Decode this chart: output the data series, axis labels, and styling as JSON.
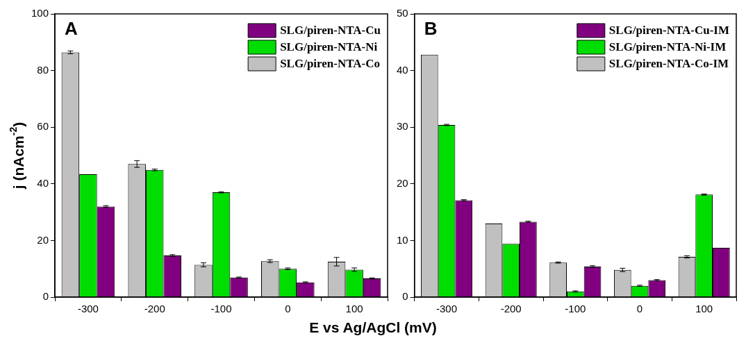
{
  "chart_data": [
    {
      "type": "bar",
      "ylabel": "j (nAcm$^{-2}$)",
      "xlabel": "E vs Ag/AgCl (mV)",
      "annotations": [
        "A"
      ],
      "categories": [
        "-300",
        "-200",
        "-100",
        "0",
        "100"
      ],
      "ylim": [
        0,
        100
      ],
      "yticks": [
        0,
        20,
        40,
        60,
        80,
        100
      ],
      "grid": false,
      "legend": "top right",
      "series": [
        {
          "name": "SLG/piren-NTA-Co",
          "color": "#c0c0c0",
          "values": [
            86.4,
            47.0,
            11.4,
            12.7,
            12.5
          ],
          "errors": [
            0.5,
            1.2,
            0.7,
            0.5,
            1.5
          ]
        },
        {
          "name": "SLG/piren-NTA-Ni",
          "color": "#00dd00",
          "values": [
            43.4,
            44.9,
            37.0,
            10.0,
            9.7
          ],
          "errors": [
            null,
            0.3,
            0.2,
            0.3,
            0.6
          ]
        },
        {
          "name": "SLG/piren-NTA-Cu",
          "color": "#800080",
          "values": [
            32.0,
            14.7,
            6.9,
            5.2,
            6.6
          ],
          "errors": [
            0.3,
            0.3,
            0.2,
            0.2,
            0.2
          ]
        }
      ]
    },
    {
      "type": "bar",
      "annotations": [
        "B"
      ],
      "categories": [
        "-300",
        "-200",
        "-100",
        "0",
        "100"
      ],
      "ylim": [
        0,
        50
      ],
      "yticks": [
        0,
        10,
        20,
        30,
        40,
        50
      ],
      "grid": false,
      "legend": "top right",
      "series": [
        {
          "name": "SLG/piren-NTA-Co-IM",
          "color": "#c0c0c0",
          "values": [
            42.8,
            13.0,
            6.1,
            4.8,
            7.1
          ],
          "errors": [
            null,
            null,
            0.1,
            0.3,
            0.2
          ]
        },
        {
          "name": "SLG/piren-NTA-Ni-IM",
          "color": "#00dd00",
          "values": [
            30.4,
            9.4,
            1.0,
            2.0,
            18.1
          ],
          "errors": [
            0.1,
            null,
            0.1,
            0.1,
            0.1
          ]
        },
        {
          "name": "SLG/piren-NTA-Cu-IM",
          "color": "#800080",
          "values": [
            17.1,
            13.3,
            5.4,
            3.0,
            8.7
          ],
          "errors": [
            0.1,
            0.1,
            0.15,
            0.1,
            null
          ]
        }
      ]
    }
  ]
}
